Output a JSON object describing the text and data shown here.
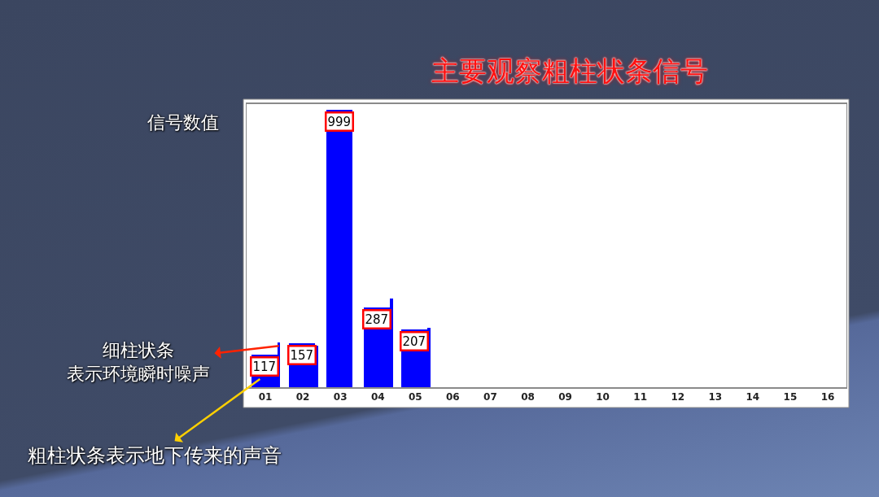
{
  "chart_data": {
    "type": "bar",
    "title": "主要观察粗柱状条信号",
    "categories": [
      "01",
      "02",
      "03",
      "04",
      "05",
      "06",
      "07",
      "08",
      "09",
      "10",
      "11",
      "12",
      "13",
      "14",
      "15",
      "16"
    ],
    "series": [
      {
        "color": "#0000ff",
        "values": [
          117,
          157,
          999,
          287,
          207,
          null,
          null,
          null,
          null,
          null,
          null,
          null,
          null,
          null,
          null,
          null
        ],
        "value_labels": [
          "117",
          "157",
          "999",
          "287",
          "207",
          null,
          null,
          null,
          null,
          null,
          null,
          null,
          null,
          null,
          null,
          null
        ]
      },
      {
        "color": "#0000ff",
        "values": [
          160,
          150,
          null,
          320,
          215,
          null,
          null,
          null,
          null,
          null,
          null,
          null,
          null,
          null,
          null,
          null
        ]
      }
    ],
    "annotations": [
      "信号数值",
      "细柱状条表示环境瞬时噪声",
      "粗柱状条表示地下传来的声音"
    ]
  }
}
